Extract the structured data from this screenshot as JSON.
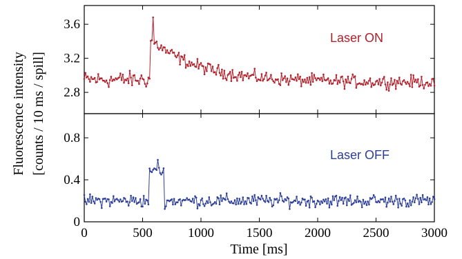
{
  "chart_data": [
    {
      "type": "line",
      "panel": "top",
      "annotation": "Laser ON",
      "color": "#b3202a",
      "xlim": [
        0,
        3000
      ],
      "ylim": [
        2.55,
        3.82
      ],
      "yticks": [
        2.8,
        3.2,
        3.6
      ],
      "ytick_labels": [
        "2.8",
        "3.2",
        "3.6"
      ],
      "x_step_ms": 10,
      "baseline_before_peak": 2.95,
      "peak": {
        "x": 590,
        "y": 3.68
      },
      "step_at_x": 570,
      "plateau_after_step": 3.42,
      "decay_to": 2.92,
      "end_value": 2.88,
      "grid": false
    },
    {
      "type": "line",
      "panel": "bottom",
      "annotation": "Laser OFF",
      "color": "#2c3e9a",
      "xlim": [
        0,
        3000
      ],
      "ylim": [
        0,
        1.03
      ],
      "yticks": [
        0,
        0.4,
        0.8
      ],
      "ytick_labels": [
        "0",
        "0.4",
        "0.8"
      ],
      "x_step_ms": 10,
      "baseline": 0.2,
      "peak": {
        "x": 630,
        "y": 0.59
      },
      "pulse_range_ms": [
        560,
        680
      ],
      "grid": false
    }
  ],
  "x_axis": {
    "label": "Time [ms]",
    "ticks": [
      0,
      500,
      1000,
      1500,
      2000,
      2500,
      3000
    ],
    "tick_labels": [
      "0",
      "500",
      "1000",
      "1500",
      "2000",
      "2500",
      "3000"
    ]
  },
  "y_axis": {
    "label_line1": "Fluorescence intensity",
    "label_line2": "[counts / 10 ms / spill]"
  }
}
